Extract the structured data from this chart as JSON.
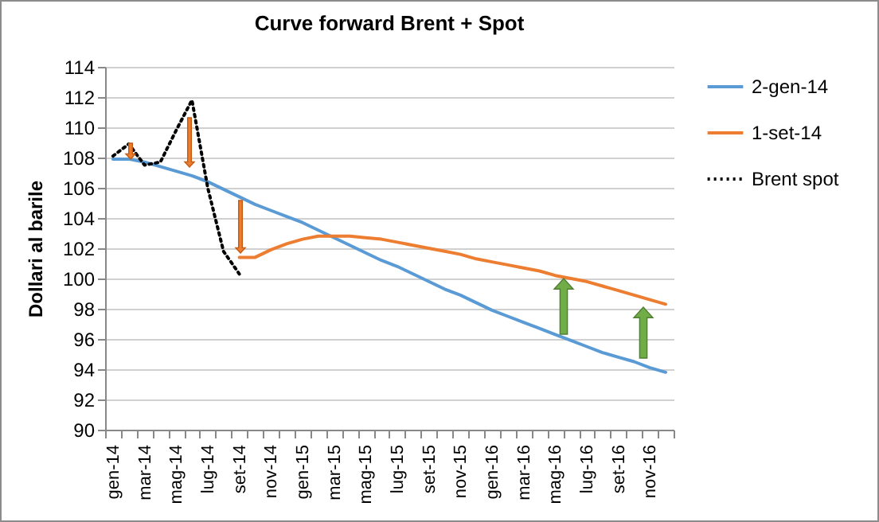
{
  "chart_data": {
    "type": "line",
    "title": "Curve forward Brent + Spot",
    "ylabel": "Dollari al barile",
    "categories": [
      "gen-14",
      null,
      "mar-14",
      null,
      "mag-14",
      null,
      "lug-14",
      null,
      "set-14",
      null,
      "nov-14",
      null,
      "gen-15",
      null,
      "mar-15",
      null,
      "mag-15",
      null,
      "lug-15",
      null,
      "set-15",
      null,
      "nov-15",
      null,
      "gen-16",
      null,
      "mar-16",
      null,
      "mag-16",
      null,
      "lug-16",
      null,
      "set-16",
      null,
      "nov-16",
      null
    ],
    "series": [
      {
        "name": "2-gen-14",
        "color": "#5b9bd5",
        "line_style": "solid",
        "values": [
          107.9,
          107.9,
          107.7,
          107.4,
          107.1,
          106.8,
          106.4,
          105.9,
          105.4,
          104.9,
          104.5,
          104.1,
          103.7,
          103.2,
          102.7,
          102.2,
          101.7,
          101.2,
          100.8,
          100.3,
          99.8,
          99.3,
          98.9,
          98.4,
          97.9,
          97.5,
          97.1,
          96.7,
          96.3,
          95.9,
          95.5,
          95.1,
          94.8,
          94.5,
          94.1,
          93.8
        ]
      },
      {
        "name": "1-set-14",
        "color": "#ed7d31",
        "line_style": "solid",
        "values": [
          null,
          null,
          null,
          null,
          null,
          null,
          null,
          null,
          101.4,
          101.4,
          101.9,
          102.3,
          102.6,
          102.8,
          102.8,
          102.8,
          102.7,
          102.6,
          102.4,
          102.2,
          102.0,
          101.8,
          101.6,
          101.3,
          101.1,
          100.9,
          100.7,
          100.5,
          100.2,
          100.0,
          99.8,
          99.5,
          99.2,
          98.9,
          98.6,
          98.3
        ]
      },
      {
        "name": "Brent spot",
        "color": "#000000",
        "line_style": "dotted",
        "values": [
          108.1,
          108.9,
          107.5,
          107.7,
          109.8,
          111.8,
          106.0,
          101.8,
          100.3,
          null,
          null,
          null,
          null,
          null,
          null,
          null,
          null,
          null,
          null,
          null,
          null,
          null,
          null,
          null,
          null,
          null,
          null,
          null,
          null,
          null,
          null,
          null,
          null,
          null,
          null,
          null
        ]
      }
    ],
    "ylim": [
      90,
      114
    ],
    "yticks": [
      90,
      92,
      94,
      96,
      98,
      100,
      102,
      104,
      106,
      108,
      110,
      112,
      114
    ],
    "grid": "y",
    "legend": "right",
    "marker": "none"
  }
}
